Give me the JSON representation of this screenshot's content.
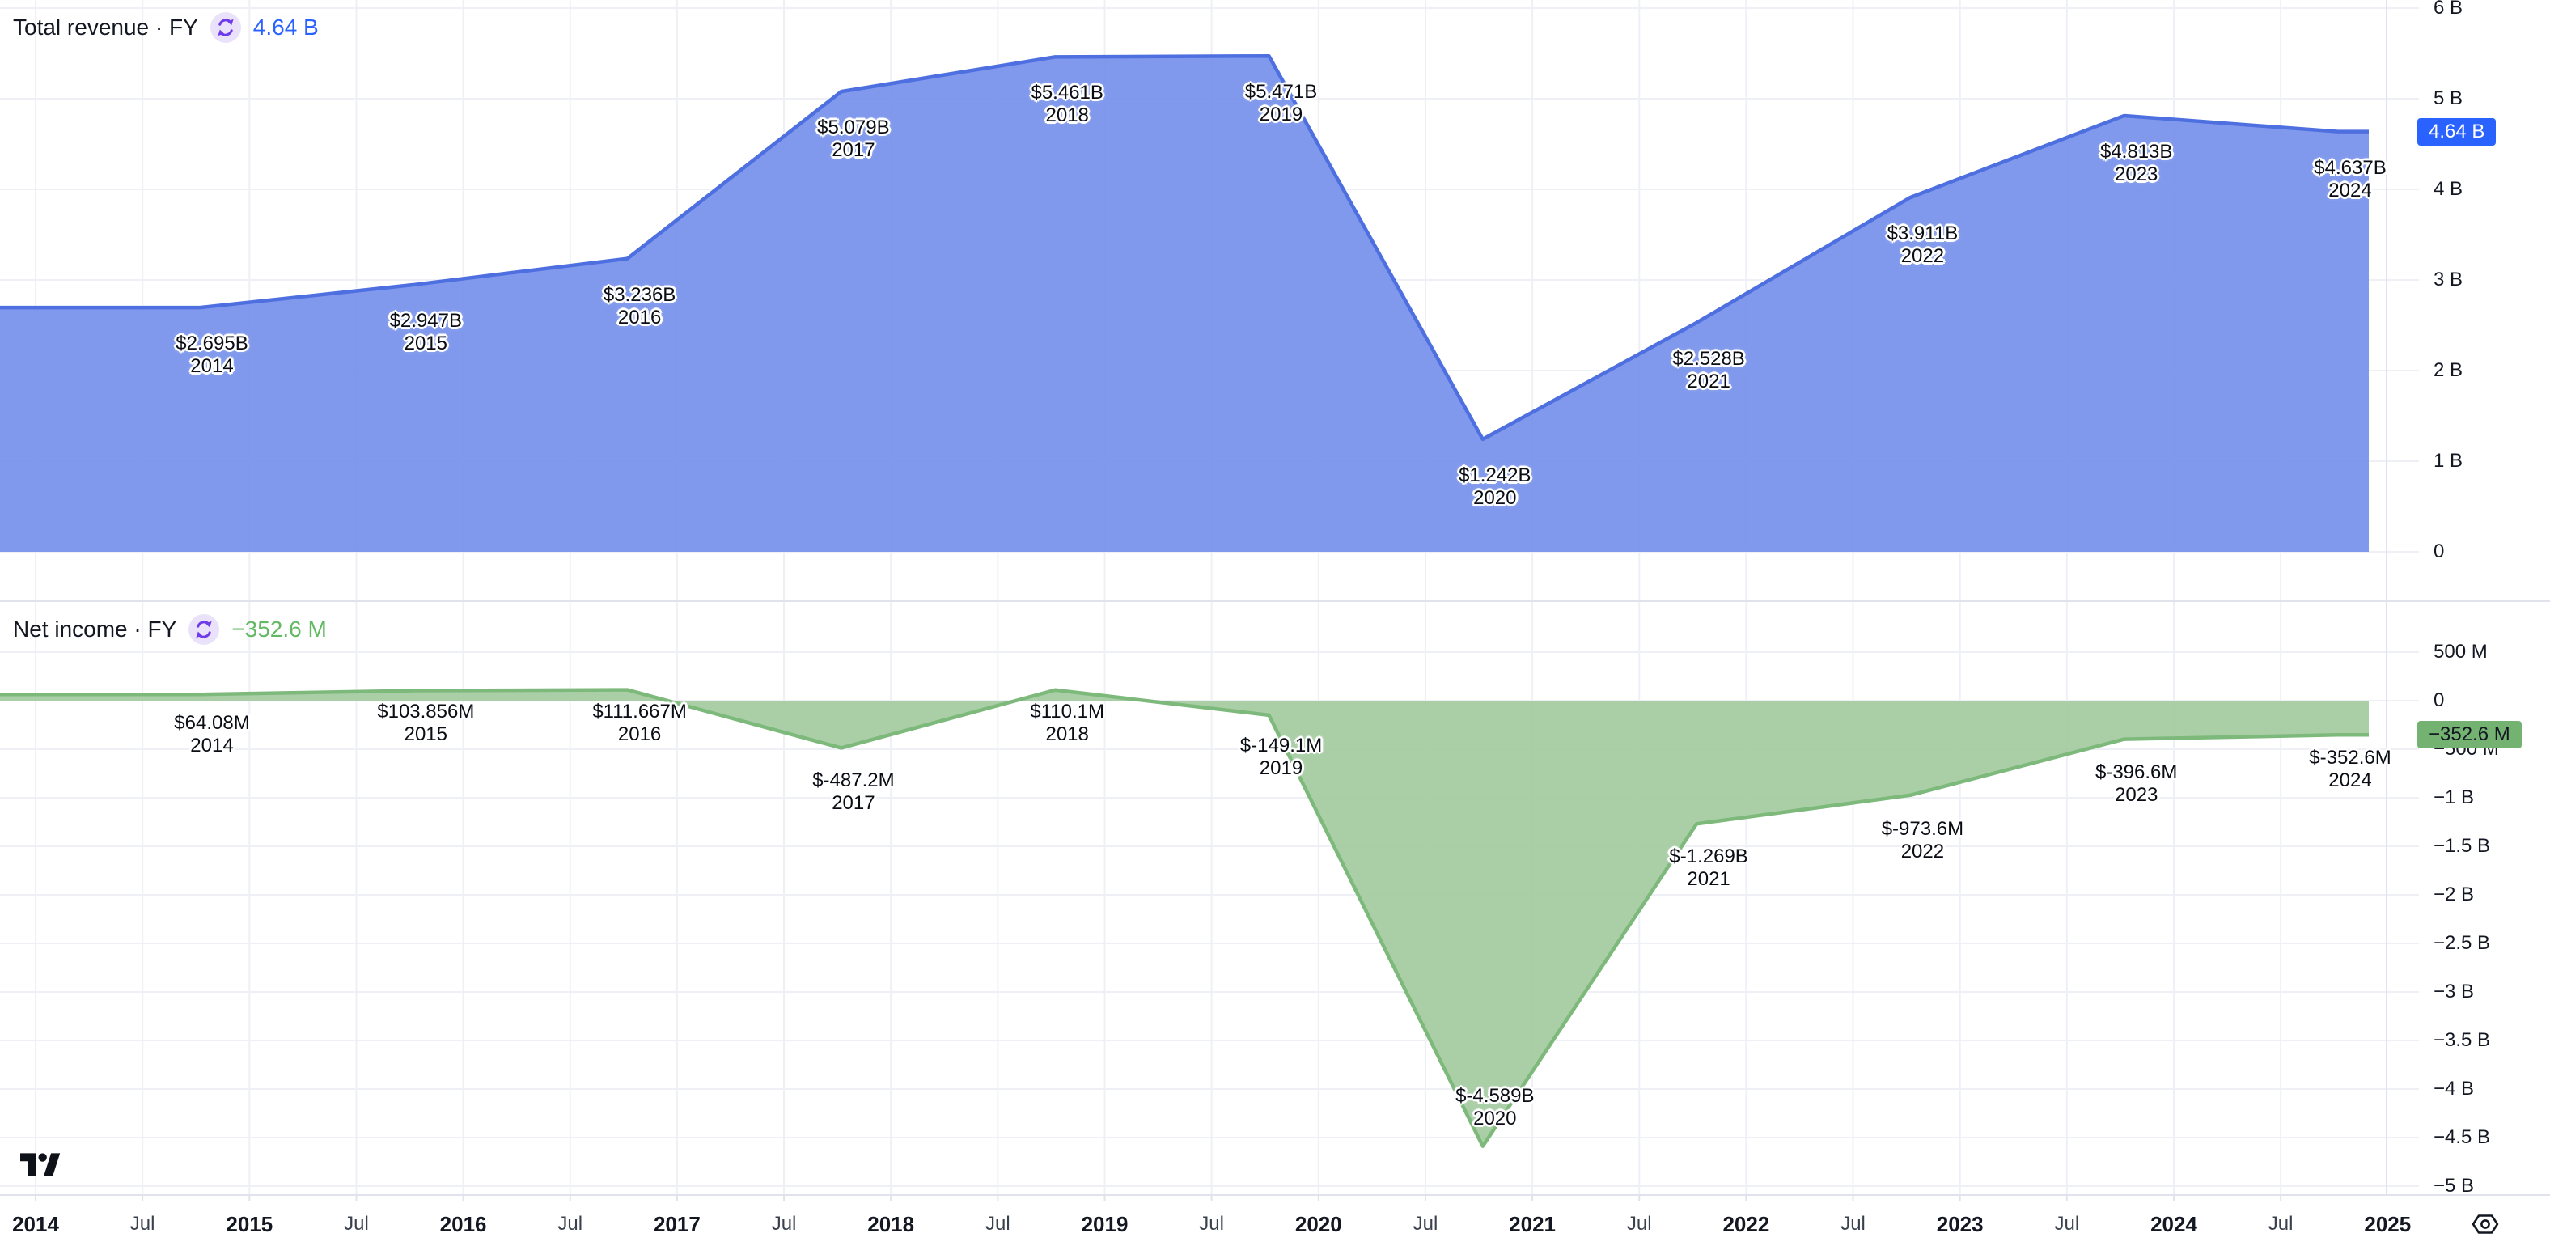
{
  "colors": {
    "background": "#FFFFFF",
    "grid": "#EEF0F5",
    "separator": "#E0E3EB",
    "axis_text": "#131722",
    "axis_text_secondary": "#3A414D"
  },
  "icons": {
    "sync": "sync-icon",
    "settings": "settings-icon",
    "logo": "tradingview-logo"
  },
  "chart_data": [
    {
      "type": "area",
      "title": "Total revenue · FY",
      "current_value": "4.64 B",
      "accent_color": "#2962FF",
      "badge_bg": "#2962FF",
      "badge_text_color": "#FFFFFF",
      "fill_color": "#7690EA",
      "fill_opacity": 0.92,
      "line_color": "#4D6FE0",
      "years": [
        2014,
        2015,
        2016,
        2017,
        2018,
        2019,
        2020,
        2021,
        2022,
        2023,
        2024
      ],
      "values_usd_billion": [
        2.695,
        2.947,
        3.236,
        5.079,
        5.461,
        5.471,
        1.242,
        2.528,
        3.911,
        4.813,
        4.637
      ],
      "point_labels": [
        {
          "value": "$2.695B",
          "year": "2014"
        },
        {
          "value": "$2.947B",
          "year": "2015"
        },
        {
          "value": "$3.236B",
          "year": "2016"
        },
        {
          "value": "$5.079B",
          "year": "2017"
        },
        {
          "value": "$5.461B",
          "year": "2018"
        },
        {
          "value": "$5.471B",
          "year": "2019"
        },
        {
          "value": "$1.242B",
          "year": "2020"
        },
        {
          "value": "$2.528B",
          "year": "2021"
        },
        {
          "value": "$3.911B",
          "year": "2022"
        },
        {
          "value": "$4.813B",
          "year": "2023"
        },
        {
          "value": "$4.637B",
          "year": "2024"
        }
      ],
      "y_ticks": [
        {
          "label": "6 B",
          "value_billion": 6
        },
        {
          "label": "5 B",
          "value_billion": 5
        },
        {
          "label": "4 B",
          "value_billion": 4
        },
        {
          "label": "3 B",
          "value_billion": 3
        },
        {
          "label": "2 B",
          "value_billion": 2
        },
        {
          "label": "1 B",
          "value_billion": 1
        },
        {
          "label": "0",
          "value_billion": 0
        }
      ],
      "ylim_billion": [
        -0.55,
        6.1
      ],
      "grid": true,
      "legend_position": "top-left"
    },
    {
      "type": "area",
      "title": "Net income · FY",
      "current_value": "−352.6 M",
      "accent_color": "#63B963",
      "badge_bg": "#74B271",
      "badge_text_color": "#131722",
      "fill_color": "#A3CBA0",
      "fill_opacity": 0.92,
      "line_color": "#7EB97C",
      "years": [
        2014,
        2015,
        2016,
        2017,
        2018,
        2019,
        2020,
        2021,
        2022,
        2023,
        2024
      ],
      "values_usd_billion": [
        0.06408,
        0.103856,
        0.111667,
        -0.4872,
        0.1101,
        -0.1491,
        -4.589,
        -1.269,
        -0.9736,
        -0.3966,
        -0.3526
      ],
      "point_labels": [
        {
          "value": "$64.08M",
          "year": "2014"
        },
        {
          "value": "$103.856M",
          "year": "2015"
        },
        {
          "value": "$111.667M",
          "year": "2016"
        },
        {
          "value": "$-487.2M",
          "year": "2017"
        },
        {
          "value": "$110.1M",
          "year": "2018"
        },
        {
          "value": "$-149.1M",
          "year": "2019"
        },
        {
          "value": "$-4.589B",
          "year": "2020"
        },
        {
          "value": "$-1.269B",
          "year": "2021"
        },
        {
          "value": "$-973.6M",
          "year": "2022"
        },
        {
          "value": "$-396.6M",
          "year": "2023"
        },
        {
          "value": "$-352.6M",
          "year": "2024"
        }
      ],
      "y_ticks": [
        {
          "label": "500 M",
          "value_billion": 0.5
        },
        {
          "label": "0",
          "value_billion": 0
        },
        {
          "label": "−500 M",
          "value_billion": -0.5
        },
        {
          "label": "−1 B",
          "value_billion": -1
        },
        {
          "label": "−1.5 B",
          "value_billion": -1.5
        },
        {
          "label": "−2 B",
          "value_billion": -2
        },
        {
          "label": "−2.5 B",
          "value_billion": -2.5
        },
        {
          "label": "−3 B",
          "value_billion": -3
        },
        {
          "label": "−3.5 B",
          "value_billion": -3.5
        },
        {
          "label": "−4 B",
          "value_billion": -4
        },
        {
          "label": "−4.5 B",
          "value_billion": -4.5
        },
        {
          "label": "−5 B",
          "value_billion": -5
        }
      ],
      "ylim_billion": [
        -5.1,
        1.03
      ],
      "grid": true,
      "legend_position": "top-left"
    }
  ],
  "x_axis": {
    "labels": [
      {
        "text": "2014",
        "emphasis": true
      },
      {
        "text": "Jul",
        "emphasis": false
      },
      {
        "text": "2015",
        "emphasis": true
      },
      {
        "text": "Jul",
        "emphasis": false
      },
      {
        "text": "2016",
        "emphasis": true
      },
      {
        "text": "Jul",
        "emphasis": false
      },
      {
        "text": "2017",
        "emphasis": true
      },
      {
        "text": "Jul",
        "emphasis": false
      },
      {
        "text": "2018",
        "emphasis": true
      },
      {
        "text": "Jul",
        "emphasis": false
      },
      {
        "text": "2019",
        "emphasis": true
      },
      {
        "text": "Jul",
        "emphasis": false
      },
      {
        "text": "2020",
        "emphasis": true
      },
      {
        "text": "Jul",
        "emphasis": false
      },
      {
        "text": "2021",
        "emphasis": true
      },
      {
        "text": "Jul",
        "emphasis": false
      },
      {
        "text": "2022",
        "emphasis": true
      },
      {
        "text": "Jul",
        "emphasis": false
      },
      {
        "text": "2023",
        "emphasis": true
      },
      {
        "text": "Jul",
        "emphasis": false
      },
      {
        "text": "2024",
        "emphasis": true
      },
      {
        "text": "Jul",
        "emphasis": false
      },
      {
        "text": "2025",
        "emphasis": true
      }
    ]
  }
}
